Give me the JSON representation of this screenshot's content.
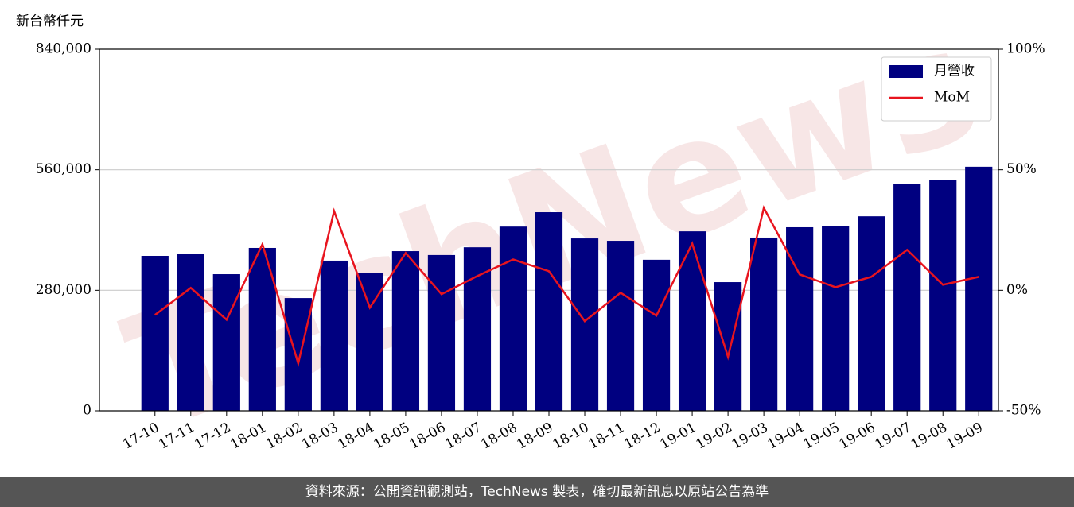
{
  "chart_data": {
    "type": "bar-line",
    "y_label": "新台幣仟元",
    "watermark": "TechNews",
    "footer": "資料來源：公開資訊觀測站，TechNews 製表，確切最新訊息以原站公告為準",
    "categories": [
      "17-10",
      "17-11",
      "17-12",
      "18-01",
      "18-02",
      "18-03",
      "18-04",
      "18-05",
      "18-06",
      "18-07",
      "18-08",
      "18-09",
      "18-10",
      "18-11",
      "18-12",
      "19-01",
      "19-02",
      "19-03",
      "19-04",
      "19-05",
      "19-06",
      "19-07",
      "19-08",
      "19-09"
    ],
    "series": [
      {
        "name": "月營收",
        "type": "bar",
        "color": "#000080",
        "values": [
          360000,
          363700,
          317500,
          378500,
          262000,
          349000,
          321000,
          371000,
          362000,
          380000,
          428000,
          461500,
          400500,
          395000,
          351000,
          417000,
          299000,
          402500,
          426500,
          430000,
          452000,
          528000,
          537000,
          567000
        ]
      },
      {
        "name": "MoM",
        "type": "line",
        "axis": "y2",
        "color": "#e8141e",
        "values": [
          -10.2,
          1,
          -12.2,
          19.1,
          -30.3,
          32.9,
          -7.2,
          15.5,
          -1.6,
          5.9,
          12.8,
          7.9,
          -12.8,
          -1,
          -10.5,
          19.4,
          -27.6,
          34.2,
          6.6,
          1.3,
          5.6,
          16.8,
          2.3,
          5.6
        ]
      }
    ],
    "ylim": [
      0,
      840000
    ],
    "yticks": [
      0,
      {
        "value": 280000,
        "label": "280,000"
      },
      {
        "value": 560000,
        "label": "560,000"
      },
      {
        "value": 840000,
        "label": "840,000"
      }
    ],
    "y2lim": [
      -50,
      100
    ],
    "y2ticks": [
      {
        "value": -50,
        "label": "-50%"
      },
      {
        "value": 0,
        "label": "0%"
      },
      {
        "value": 50,
        "label": "50%"
      },
      {
        "value": 100,
        "label": "100%"
      }
    ],
    "grid": true,
    "legend": "upper right"
  }
}
